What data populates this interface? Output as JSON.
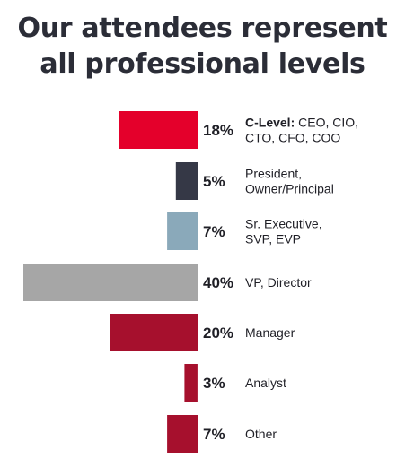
{
  "title": {
    "line1": "Our attendees represent",
    "line2": "all professional levels"
  },
  "chart_data": {
    "type": "bar",
    "orientation": "horizontal",
    "categories": [
      "C-Level: CEO, CIO, CTO, CFO, COO",
      "President, Owner/Principal",
      "Sr. Executive, SVP, EVP",
      "VP, Director",
      "Manager",
      "Analyst",
      "Other"
    ],
    "values": [
      18,
      5,
      7,
      40,
      20,
      3,
      7
    ],
    "unit": "%",
    "value_labels": [
      "18%",
      "5%",
      "7%",
      "40%",
      "20%",
      "3%",
      "7%"
    ],
    "label_lines": [
      [
        {
          "bold": "C-Level:",
          "text": " CEO, CIO,"
        },
        {
          "text": "CTO, CFO, COO"
        }
      ],
      [
        {
          "text": "President,"
        },
        {
          "text": "Owner/Principal"
        }
      ],
      [
        {
          "text": "Sr. Executive,"
        },
        {
          "text": "SVP, EVP"
        }
      ],
      [
        {
          "text": "VP, Director"
        }
      ],
      [
        {
          "text": "Manager"
        }
      ],
      [
        {
          "text": "Analyst"
        }
      ],
      [
        {
          "text": "Other"
        }
      ]
    ],
    "colors": [
      "#e4002b",
      "#353846",
      "#8aa9ba",
      "#a6a6a6",
      "#a6102d",
      "#a6102d",
      "#a6102d"
    ],
    "grid": false,
    "legend": "none"
  }
}
